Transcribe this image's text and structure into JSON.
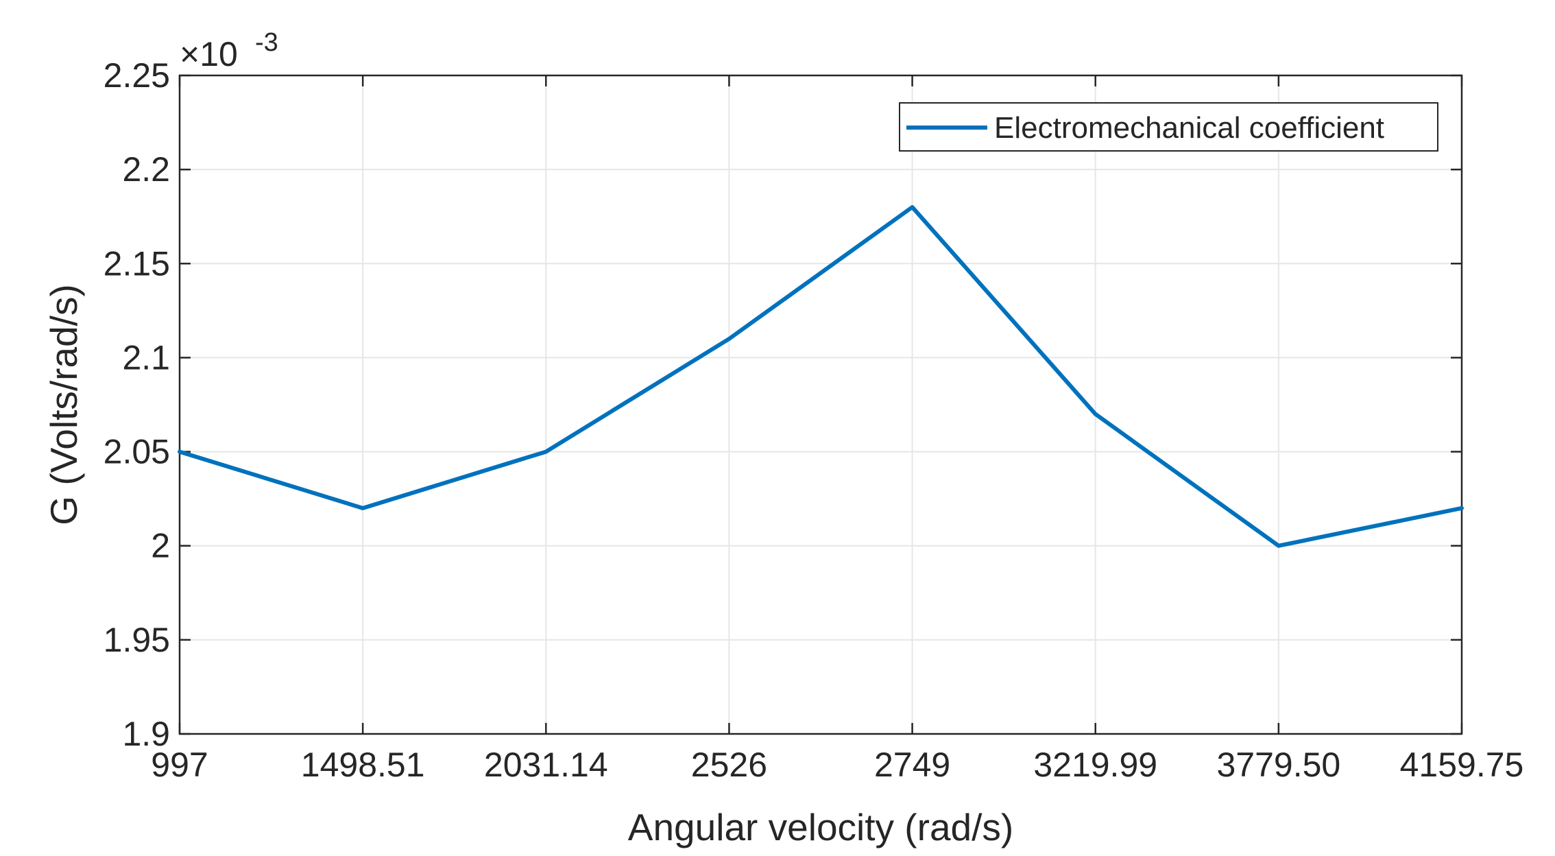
{
  "chart_data": {
    "type": "line",
    "categories": [
      "997",
      "1498.51",
      "2031.14",
      "2526",
      "2749",
      "3219.99",
      "3779.50",
      "4159.75"
    ],
    "series": [
      {
        "name": "Electromechanical coefficient",
        "values": [
          2.05,
          2.02,
          2.05,
          2.11,
          2.18,
          2.07,
          2.0,
          2.02
        ],
        "color": "#0072BD"
      }
    ],
    "xlabel": "Angular velocity (rad/s)",
    "ylabel": "G (Volts/rad/s)",
    "ylim": [
      1.9,
      2.25
    ],
    "yticks": [
      "1.9",
      "1.95",
      "2",
      "2.05",
      "2.1",
      "2.15",
      "2.2",
      "2.25"
    ],
    "y_exponent_base": "×10",
    "y_exponent_power": "-3",
    "grid": true,
    "legend_position": "top-right"
  }
}
